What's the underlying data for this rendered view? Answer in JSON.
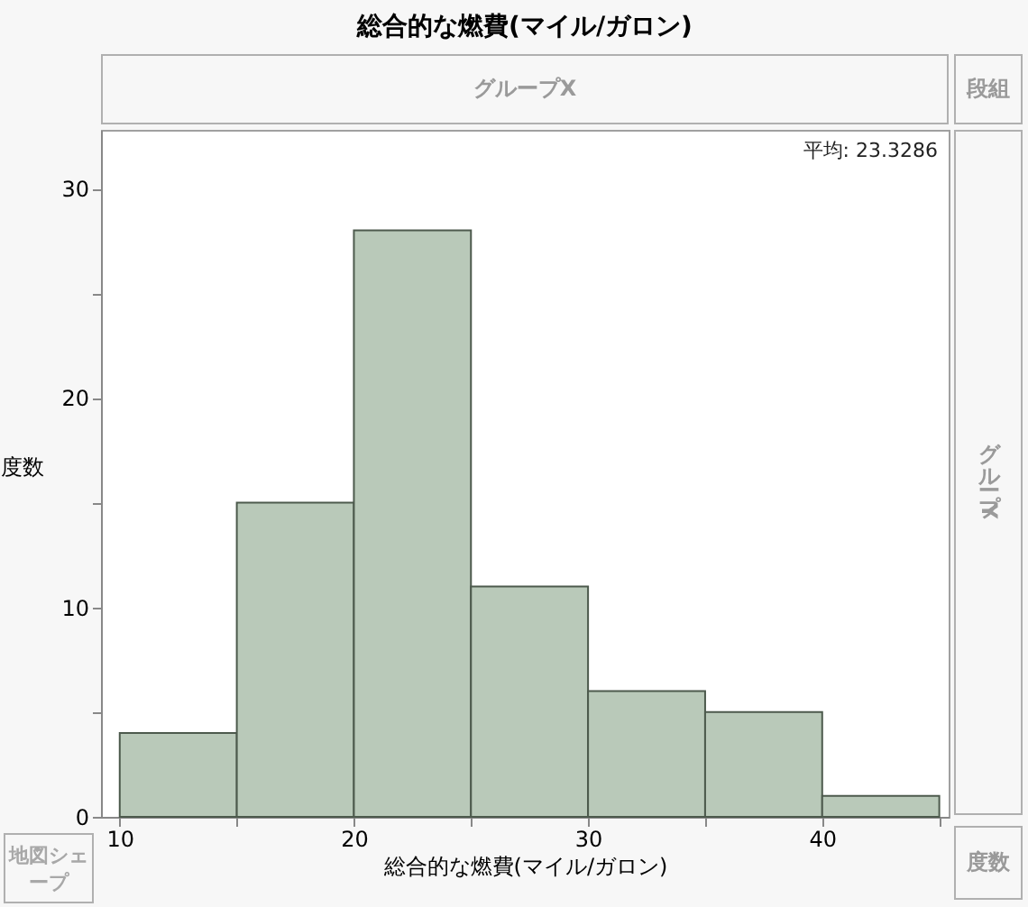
{
  "chart_data": {
    "type": "histogram",
    "title": "総合的な燃費(マイル/ガロン)",
    "xlabel": "総合的な燃費(マイル/ガロン)",
    "ylabel": "度数",
    "bins": [
      10,
      15,
      20,
      25,
      30,
      35,
      40,
      45
    ],
    "values": [
      4,
      15,
      28,
      11,
      6,
      5,
      1
    ],
    "color": "#b9c9b9",
    "xlim": [
      9.2,
      45.4
    ],
    "ylim": [
      0,
      32.8
    ],
    "xticks": [
      10,
      {
        "value": 15,
        "label": null
      },
      20,
      {
        "value": 25,
        "label": null
      },
      30,
      {
        "value": 35,
        "label": null
      },
      40,
      {
        "value": 45,
        "label": null
      }
    ],
    "yticks": [
      0,
      {
        "value": 5,
        "label": null
      },
      10,
      {
        "value": 15,
        "label": null
      },
      20,
      {
        "value": 25,
        "label": null
      },
      30
    ],
    "grid": false,
    "annotations": [
      "平均: 23.3286",
      "グループX",
      "段組",
      "グループY",
      "地図シェープ",
      "度数"
    ]
  }
}
